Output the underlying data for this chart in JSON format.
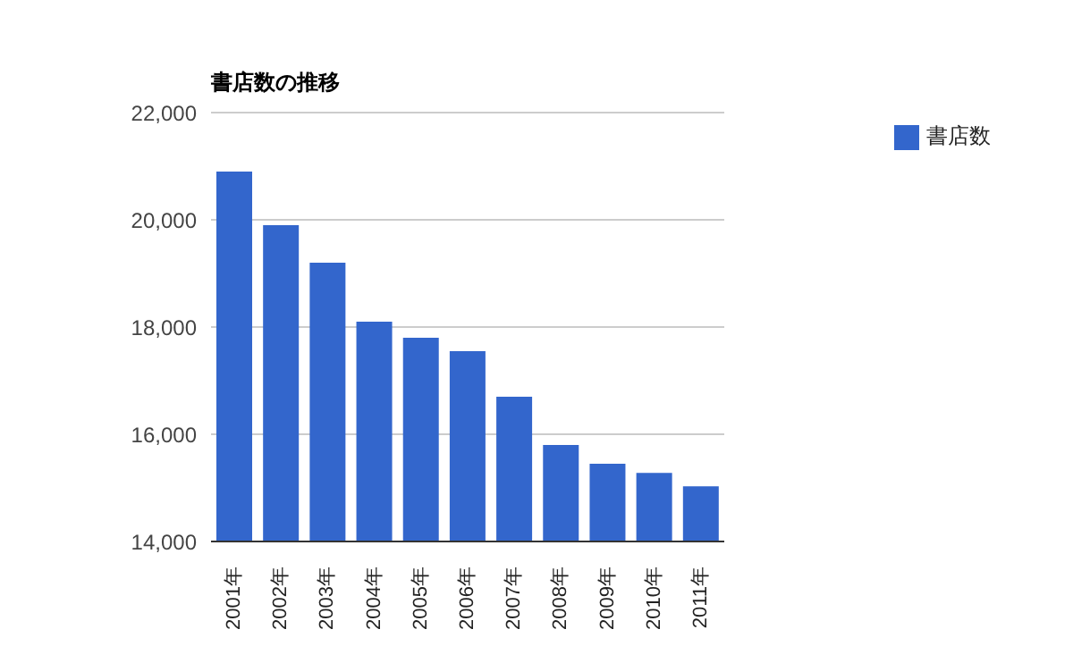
{
  "chart_data": {
    "type": "bar",
    "title": "書店数の推移",
    "categories": [
      "2001年",
      "2002年",
      "2003年",
      "2004年",
      "2005年",
      "2006年",
      "2007年",
      "2008年",
      "2009年",
      "2010年",
      "2011年"
    ],
    "series": [
      {
        "name": "書店数",
        "color": "#3366cc",
        "values": [
          20900,
          19900,
          19200,
          18100,
          17800,
          17550,
          16700,
          15800,
          15450,
          15280,
          15030
        ]
      }
    ],
    "ylim": [
      14000,
      22000
    ],
    "yticks": [
      {
        "value": 14000,
        "label": "14,000"
      },
      {
        "value": 16000,
        "label": "16,000"
      },
      {
        "value": 18000,
        "label": "18,000"
      },
      {
        "value": 20000,
        "label": "20,000"
      },
      {
        "value": 22000,
        "label": "22,000"
      }
    ],
    "grid": "y",
    "legend": "right"
  }
}
